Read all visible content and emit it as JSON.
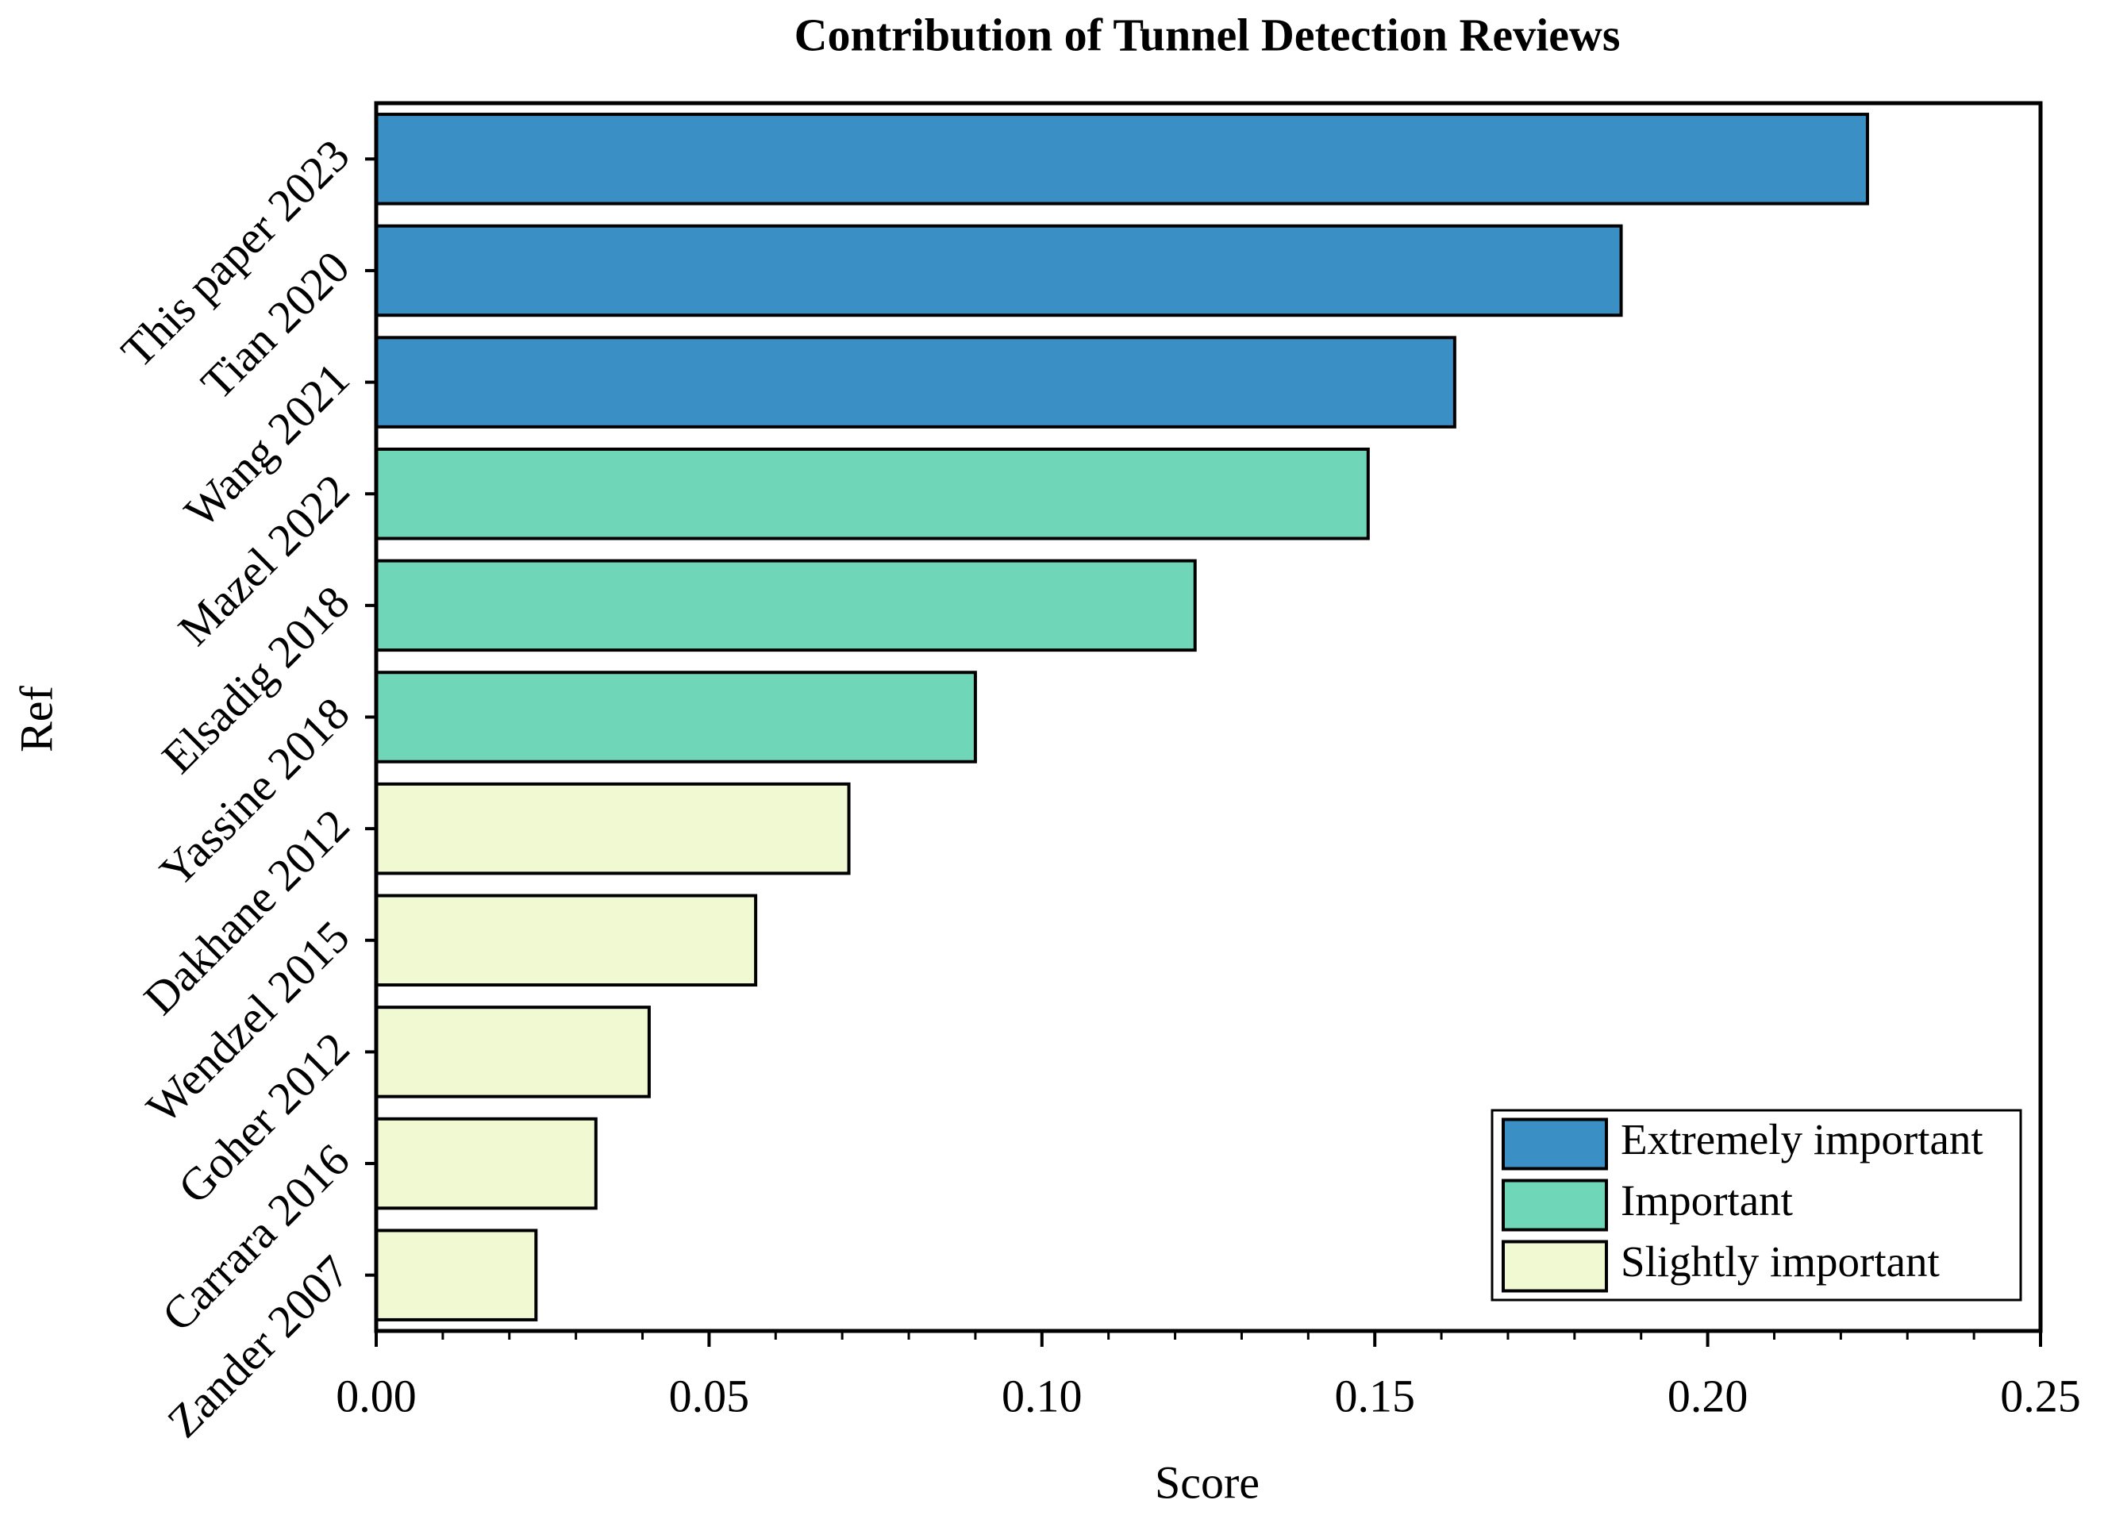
{
  "chart_data": {
    "type": "bar",
    "orientation": "horizontal",
    "title": "Contribution of Tunnel Detection Reviews",
    "x_label": "Score",
    "y_label": "Ref",
    "categories": [
      "This paper 2023",
      "Tian 2020",
      "Wang 2021",
      "Mazel 2022",
      "Elsadig 2018",
      "Yassine 2018",
      "Dakhane 2012",
      "Wendzel 2015",
      "Goher 2012",
      "Carrara 2016",
      "Zander 2007"
    ],
    "series": [
      {
        "name": "Extremely important",
        "color": "#3a8fc4",
        "values": [
          0.224,
          0.187,
          0.162,
          null,
          null,
          null,
          null,
          null,
          null,
          null,
          null
        ]
      },
      {
        "name": "Important",
        "color": "#6fd6b8",
        "values": [
          null,
          null,
          null,
          0.149,
          0.123,
          0.09,
          null,
          null,
          null,
          null,
          null
        ]
      },
      {
        "name": "Slightly important",
        "color": "#f1f9d3",
        "values": [
          null,
          null,
          null,
          null,
          null,
          null,
          0.071,
          0.057,
          0.041,
          0.033,
          0.024
        ]
      }
    ],
    "xlim": [
      0,
      0.25
    ],
    "xticks": [
      {
        "value": 0,
        "label": "0.00"
      },
      {
        "value": 0.05,
        "label": "0.05"
      },
      {
        "value": 0.1,
        "label": "0.10"
      },
      {
        "value": 0.15,
        "label": "0.15"
      },
      {
        "value": 0.2,
        "label": "0.20"
      },
      {
        "value": 0.25,
        "label": "0.25"
      }
    ],
    "legend": "lower right"
  }
}
